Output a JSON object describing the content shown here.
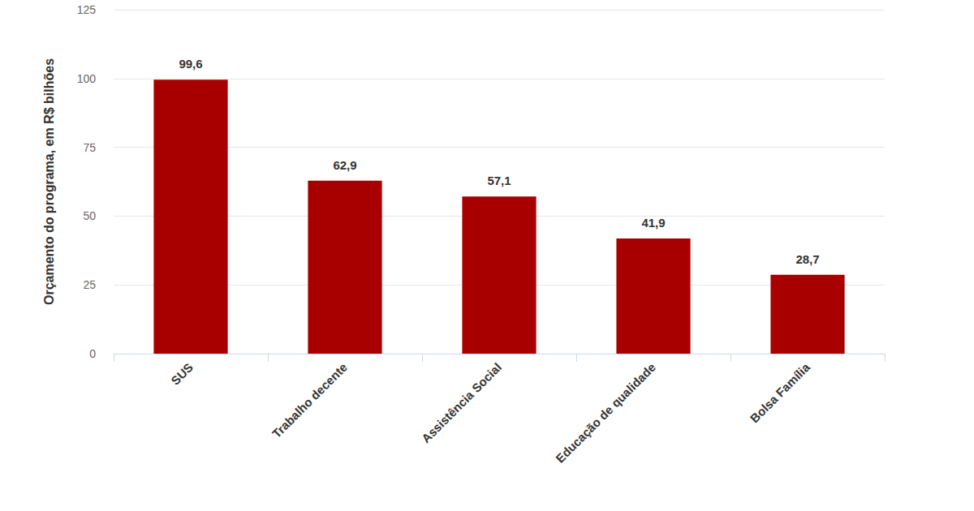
{
  "chart_data": {
    "type": "bar",
    "categories": [
      "SUS",
      "Trabalho decente",
      "Assistência Social",
      "Educação de qualidade",
      "Bolsa Família"
    ],
    "values": [
      99.6,
      62.9,
      57.1,
      41.9,
      28.7
    ],
    "value_labels": [
      "99,6",
      "62,9",
      "57,1",
      "41,9",
      "28,7"
    ],
    "color": "#a80000",
    "y_label": "Orçamento do programa, em R$ bilhões",
    "ylim": [
      0,
      125
    ],
    "yticks": [
      0,
      25,
      50,
      75,
      100,
      125
    ],
    "grid": true,
    "data_labels": true
  }
}
